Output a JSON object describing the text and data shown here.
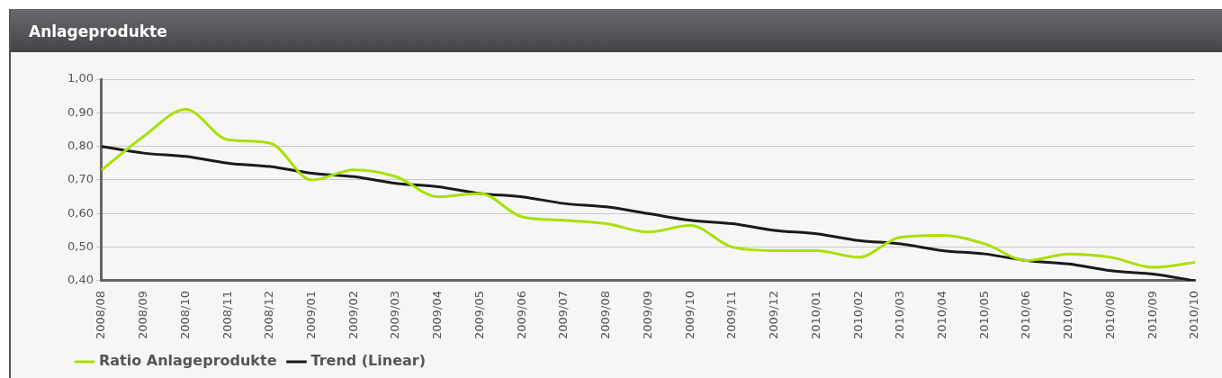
{
  "chart_data": {
    "type": "line",
    "title": "Anlageprodukte",
    "categories": [
      "2008/08",
      "2008/09",
      "2008/10",
      "2008/11",
      "2008/12",
      "2009/01",
      "2009/02",
      "2009/03",
      "2009/04",
      "2009/05",
      "2009/06",
      "2009/07",
      "2009/08",
      "2009/09",
      "2009/10",
      "2009/11",
      "2009/12",
      "2010/01",
      "2010/02",
      "2010/03",
      "2010/04",
      "2010/05",
      "2010/06",
      "2010/07",
      "2010/08",
      "2010/09",
      "2010/10"
    ],
    "series": [
      {
        "name": "Ratio Anlageprodukte",
        "color": "#a8e000",
        "values": [
          0.73,
          0.83,
          0.91,
          0.82,
          0.81,
          0.7,
          0.73,
          0.71,
          0.65,
          0.66,
          0.59,
          0.58,
          0.57,
          0.545,
          0.565,
          0.5,
          0.49,
          0.49,
          0.47,
          0.53,
          0.535,
          0.51,
          0.46,
          0.48,
          0.47,
          0.44,
          0.455
        ]
      },
      {
        "name": "Trend (Linear)",
        "color": "#1a1a1a",
        "values": [
          0.8,
          0.78,
          0.77,
          0.75,
          0.74,
          0.72,
          0.71,
          0.69,
          0.68,
          0.66,
          0.65,
          0.63,
          0.62,
          0.6,
          0.58,
          0.57,
          0.55,
          0.54,
          0.52,
          0.51,
          0.49,
          0.48,
          0.46,
          0.45,
          0.43,
          0.42,
          0.4
        ]
      }
    ],
    "ylim": [
      0.4,
      1.0
    ],
    "yticks": [
      {
        "value": 0.4,
        "label": "0,40"
      },
      {
        "value": 0.5,
        "label": "0,50"
      },
      {
        "value": 0.6,
        "label": "0,60"
      },
      {
        "value": 0.7,
        "label": "0,70"
      },
      {
        "value": 0.8,
        "label": "0,80"
      },
      {
        "value": 0.9,
        "label": "0,90"
      },
      {
        "value": 1.0,
        "label": "1,00"
      }
    ],
    "grid": "y",
    "legend": "bottom",
    "marker": "none",
    "line_style": "solid"
  }
}
